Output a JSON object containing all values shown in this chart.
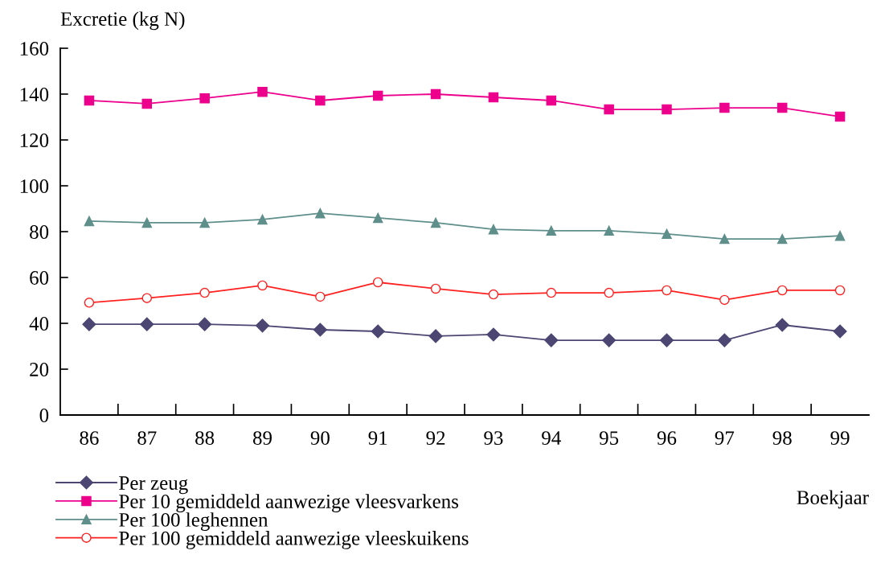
{
  "chart_data": {
    "type": "line",
    "ylabel": "Excretie (kg N)",
    "xlabel": "Boekjaar",
    "categories": [
      "86",
      "87",
      "88",
      "89",
      "90",
      "91",
      "92",
      "93",
      "94",
      "95",
      "96",
      "97",
      "98",
      "99"
    ],
    "ylim": [
      0,
      160
    ],
    "yticks": [
      0,
      20,
      40,
      60,
      80,
      100,
      120,
      140,
      160
    ],
    "grid": false,
    "legend": "bottom left",
    "line_style": "solid",
    "series": [
      {
        "name": "Per zeug",
        "color": "#4b4672",
        "marker": "diamond",
        "values": [
          39.6,
          39.6,
          39.6,
          39.0,
          37.2,
          36.5,
          34.4,
          35.1,
          32.6,
          32.6,
          32.6,
          32.6,
          39.3,
          36.5
        ]
      },
      {
        "name": "Per 10 gemiddeld aanwezige vleesvarkens",
        "color": "#ec008c",
        "marker": "square",
        "values": [
          137.2,
          135.8,
          138.2,
          141.0,
          137.2,
          139.3,
          140.0,
          138.6,
          137.2,
          133.3,
          133.3,
          134.0,
          134.0,
          130.2
        ]
      },
      {
        "name": "Per 100 leghennen",
        "color": "#5f8f8b",
        "marker": "triangle",
        "values": [
          84.6,
          83.9,
          83.9,
          85.3,
          88.0,
          86.0,
          83.9,
          81.0,
          80.4,
          80.4,
          79.0,
          76.8,
          76.8,
          78.2
        ]
      },
      {
        "name": "Per 100 gemiddeld aanwezige vleeskuikens",
        "color": "#ff2020",
        "marker": "circle_open",
        "values": [
          49.0,
          51.0,
          53.3,
          56.5,
          51.6,
          57.9,
          55.1,
          52.6,
          53.3,
          53.3,
          54.4,
          50.2,
          54.4,
          54.4
        ]
      }
    ]
  }
}
